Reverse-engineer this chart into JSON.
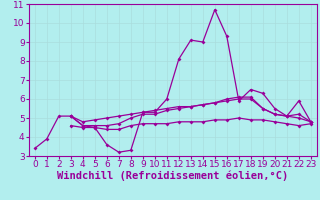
{
  "xlabel": "Windchill (Refroidissement éolien,°C)",
  "x": [
    0,
    1,
    2,
    3,
    4,
    5,
    6,
    7,
    8,
    9,
    10,
    11,
    12,
    13,
    14,
    15,
    16,
    17,
    18,
    19,
    20,
    21,
    22,
    23
  ],
  "line1": [
    3.4,
    3.9,
    5.1,
    5.1,
    4.6,
    4.5,
    3.6,
    3.2,
    3.3,
    5.3,
    5.3,
    6.0,
    8.1,
    9.1,
    9.0,
    10.7,
    9.3,
    5.9,
    6.5,
    6.3,
    5.5,
    5.1,
    5.9,
    4.8
  ],
  "line2": [
    null,
    null,
    null,
    5.1,
    4.6,
    4.6,
    4.6,
    4.7,
    5.0,
    5.2,
    5.2,
    5.4,
    5.5,
    5.6,
    5.7,
    5.8,
    6.0,
    6.1,
    6.1,
    5.5,
    5.2,
    5.1,
    5.2,
    4.8
  ],
  "line3": [
    null,
    null,
    null,
    5.1,
    4.8,
    4.9,
    5.0,
    5.1,
    5.2,
    5.3,
    5.4,
    5.5,
    5.6,
    5.6,
    5.7,
    5.8,
    5.9,
    6.0,
    6.0,
    5.5,
    5.2,
    5.1,
    5.0,
    4.8
  ],
  "line4": [
    null,
    null,
    null,
    4.6,
    4.5,
    4.5,
    4.4,
    4.4,
    4.6,
    4.7,
    4.7,
    4.7,
    4.8,
    4.8,
    4.8,
    4.9,
    4.9,
    5.0,
    4.9,
    4.9,
    4.8,
    4.7,
    4.6,
    4.7
  ],
  "line_color": "#990099",
  "bg_color": "#b2eeee",
  "grid_color": "#cccccc",
  "ylim": [
    3,
    11
  ],
  "yticks": [
    3,
    4,
    5,
    6,
    7,
    8,
    9,
    10,
    11
  ],
  "xticks": [
    0,
    1,
    2,
    3,
    4,
    5,
    6,
    7,
    8,
    9,
    10,
    11,
    12,
    13,
    14,
    15,
    16,
    17,
    18,
    19,
    20,
    21,
    22,
    23
  ],
  "tick_fontsize": 6.5,
  "xlabel_fontsize": 7.5,
  "lw": 0.9,
  "ms": 2.0
}
